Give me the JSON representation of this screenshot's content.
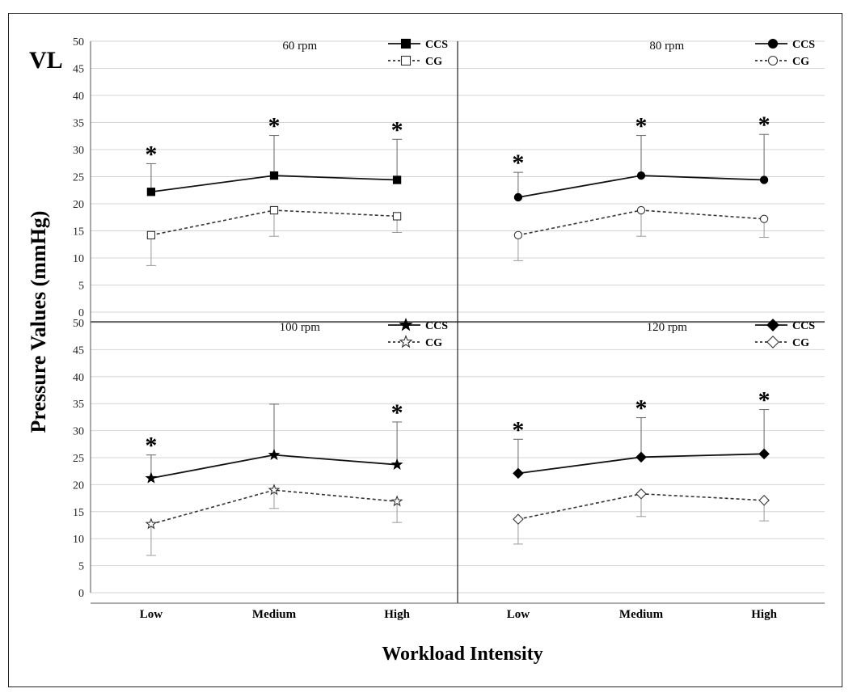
{
  "figure": {
    "panel_tag": "VL",
    "y_axis_title": "Pressure Values (mmHg)",
    "x_axis_title": "Workload Intensity"
  },
  "chart_data": [
    {
      "type": "line",
      "title": "60 rpm",
      "categories": [
        "Low",
        "Medium",
        "High"
      ],
      "ylim": [
        0,
        50
      ],
      "yticks": [
        0,
        5,
        10,
        15,
        20,
        25,
        30,
        35,
        40,
        45,
        50
      ],
      "grid": true,
      "legend_position": "top-right",
      "significance_mark": "*",
      "significant": [
        true,
        true,
        true
      ],
      "series": [
        {
          "name": "CCS",
          "values": [
            22.2,
            25.2,
            24.4
          ],
          "error": [
            5.2,
            7.4,
            7.5
          ],
          "marker": "square",
          "filled": true,
          "dashed": false
        },
        {
          "name": "CG",
          "values": [
            14.2,
            18.8,
            17.7
          ],
          "error": [
            5.6,
            4.8,
            3.0
          ],
          "marker": "square",
          "filled": false,
          "dashed": true
        }
      ]
    },
    {
      "type": "line",
      "title": "80 rpm",
      "categories": [
        "Low",
        "Medium",
        "High"
      ],
      "ylim": [
        0,
        50
      ],
      "yticks": [],
      "grid": true,
      "legend_position": "top-right",
      "significance_mark": "*",
      "significant": [
        true,
        true,
        true
      ],
      "series": [
        {
          "name": "CCS",
          "values": [
            21.2,
            25.2,
            24.4
          ],
          "error": [
            4.6,
            7.4,
            8.4
          ],
          "marker": "circle",
          "filled": true,
          "dashed": false
        },
        {
          "name": "CG",
          "values": [
            14.2,
            18.8,
            17.2
          ],
          "error": [
            4.7,
            4.8,
            3.4
          ],
          "marker": "circle",
          "filled": false,
          "dashed": true
        }
      ]
    },
    {
      "type": "line",
      "title": "100 rpm",
      "categories": [
        "Low",
        "Medium",
        "High"
      ],
      "ylim": [
        0,
        50
      ],
      "yticks": [
        0,
        5,
        10,
        15,
        20,
        25,
        30,
        35,
        40,
        45,
        50
      ],
      "grid": true,
      "legend_position": "top-right",
      "significance_mark": "*",
      "significant": [
        true,
        false,
        true
      ],
      "series": [
        {
          "name": "CCS",
          "values": [
            21.2,
            25.5,
            23.7
          ],
          "error": [
            4.3,
            9.4,
            7.9
          ],
          "marker": "star",
          "filled": true,
          "dashed": false
        },
        {
          "name": "CG",
          "values": [
            12.7,
            19.0,
            16.9
          ],
          "error": [
            5.8,
            3.4,
            3.9
          ],
          "marker": "star",
          "filled": false,
          "dashed": true
        }
      ]
    },
    {
      "type": "line",
      "title": "120 rpm",
      "categories": [
        "Low",
        "Medium",
        "High"
      ],
      "ylim": [
        0,
        50
      ],
      "yticks": [],
      "grid": true,
      "legend_position": "top-right",
      "significance_mark": "*",
      "significant": [
        true,
        true,
        true
      ],
      "series": [
        {
          "name": "CCS",
          "values": [
            22.1,
            25.1,
            25.7
          ],
          "error": [
            6.3,
            7.3,
            8.2
          ],
          "marker": "diamond",
          "filled": true,
          "dashed": false
        },
        {
          "name": "CG",
          "values": [
            13.6,
            18.3,
            17.1
          ],
          "error": [
            4.6,
            4.2,
            3.8
          ],
          "marker": "diamond",
          "filled": false,
          "dashed": true
        }
      ]
    }
  ]
}
